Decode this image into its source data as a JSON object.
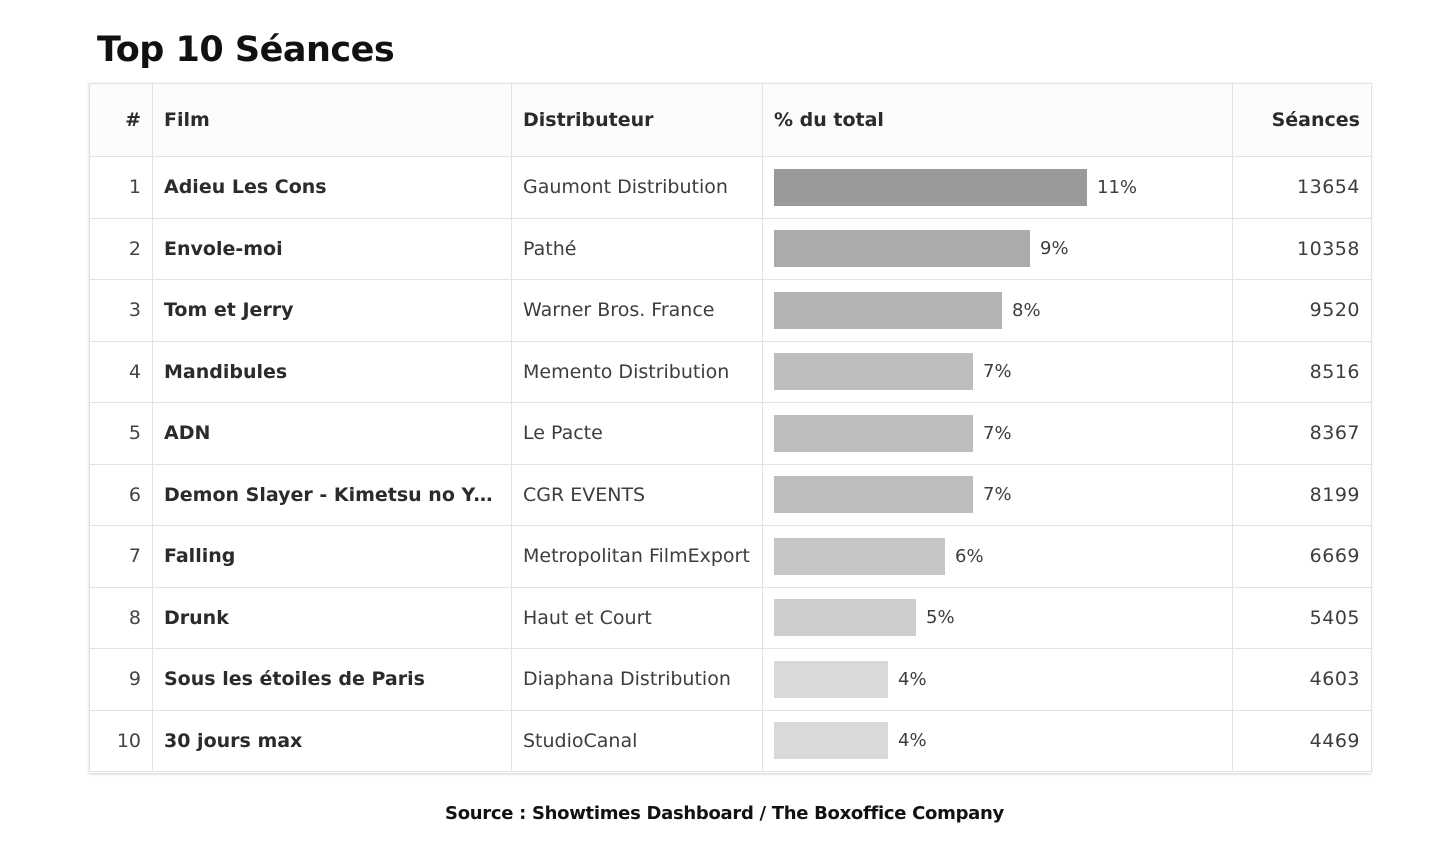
{
  "title": "Top 10 Séances",
  "source": "Source : Showtimes Dashboard / The Boxoffice Company",
  "chart_data": {
    "type": "table",
    "title": "Top 10 Séances",
    "columns": [
      "#",
      "Film",
      "Distributeur",
      "% du total",
      "Séances"
    ],
    "rows": [
      {
        "rank": "1",
        "film": "Adieu Les Cons",
        "distributor": "Gaumont Distribution",
        "pct_label": "11%",
        "pct": 11,
        "seances": "13654",
        "bar_color": "#9a9a9a"
      },
      {
        "rank": "2",
        "film": "Envole-moi",
        "distributor": "Pathé",
        "pct_label": "9%",
        "pct": 9,
        "seances": "10358",
        "bar_color": "#ababab"
      },
      {
        "rank": "3",
        "film": "Tom et Jerry",
        "distributor": "Warner Bros. France",
        "pct_label": "8%",
        "pct": 8,
        "seances": "9520",
        "bar_color": "#b3b3b3"
      },
      {
        "rank": "4",
        "film": "Mandibules",
        "distributor": "Memento Distribution",
        "pct_label": "7%",
        "pct": 7,
        "seances": "8516",
        "bar_color": "#bebebe"
      },
      {
        "rank": "5",
        "film": "ADN",
        "distributor": "Le Pacte",
        "pct_label": "7%",
        "pct": 7,
        "seances": "8367",
        "bar_color": "#bebebe"
      },
      {
        "rank": "6",
        "film": "Demon Slayer - Kimetsu no Yaiba - Le train de l'infini",
        "distributor": "CGR EVENTS",
        "pct_label": "7%",
        "pct": 7,
        "seances": "8199",
        "bar_color": "#bebebe"
      },
      {
        "rank": "7",
        "film": "Falling",
        "distributor": "Metropolitan FilmExport",
        "pct_label": "6%",
        "pct": 6,
        "seances": "6669",
        "bar_color": "#c6c6c6"
      },
      {
        "rank": "8",
        "film": "Drunk",
        "distributor": "Haut et Court",
        "pct_label": "5%",
        "pct": 5,
        "seances": "5405",
        "bar_color": "#cecece"
      },
      {
        "rank": "9",
        "film": "Sous les étoiles de Paris",
        "distributor": "Diaphana Distribution",
        "pct_label": "4%",
        "pct": 4,
        "seances": "4603",
        "bar_color": "#d9d9d9"
      },
      {
        "rank": "10",
        "film": "30 jours max",
        "distributor": "StudioCanal",
        "pct_label": "4%",
        "pct": 4,
        "seances": "4469",
        "bar_color": "#d9d9d9"
      }
    ]
  }
}
